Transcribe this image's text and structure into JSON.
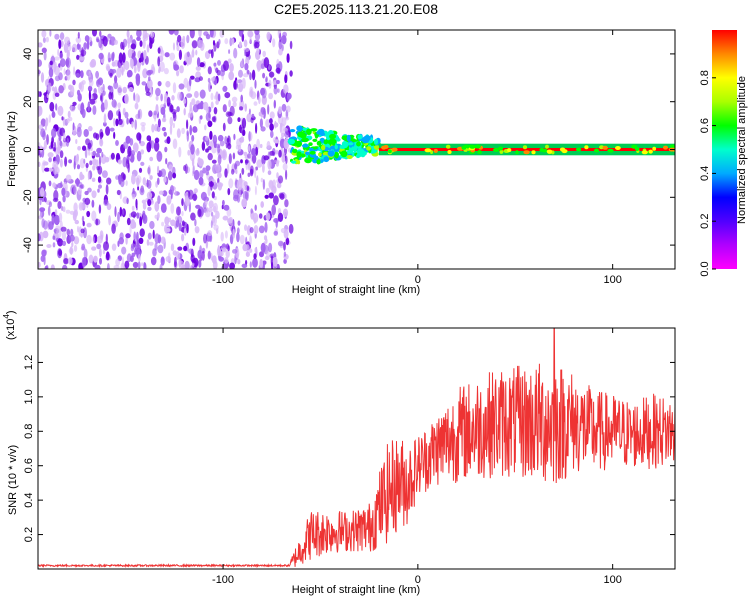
{
  "figure_title": "C2E5.2025.113.21.20.E08",
  "chart_data": [
    {
      "type": "heatmap",
      "title": "C2E5.2025.113.21.20.E08",
      "xlabel": "Height of straight line (km)",
      "ylabel": "Frequency (Hz)",
      "xlim": [
        -195,
        132
      ],
      "ylim": [
        -50,
        50
      ],
      "xticks": [
        -100,
        0,
        100
      ],
      "yticks": [
        -40,
        -20,
        0,
        20,
        40
      ],
      "colorbar": {
        "label": "Normalized spectral amplitude",
        "range": [
          0,
          1
        ],
        "ticks": [
          0.0,
          0.2,
          0.4,
          0.6,
          0.8
        ],
        "tick_labels": [
          "0.0",
          "0.2",
          "0.4",
          "0.6",
          "0.8"
        ],
        "colormap": [
          "#ff00ff",
          "#8000ff",
          "#0000ff",
          "#00aaff",
          "#00ffcc",
          "#00ff00",
          "#aaff00",
          "#ffff00",
          "#ff8800",
          "#ff0000"
        ]
      },
      "regions": [
        {
          "x_range": [
            -195,
            -65
          ],
          "freq_range": [
            -50,
            50
          ],
          "amplitude": 0.15,
          "description": "broadband noise"
        },
        {
          "x_range": [
            -65,
            -20
          ],
          "freq_range": [
            -6,
            10
          ],
          "amplitude": 0.45
        },
        {
          "x_range": [
            -20,
            132
          ],
          "freq_range": [
            -2,
            2
          ],
          "amplitude": 0.95
        }
      ]
    },
    {
      "type": "line",
      "xlabel": "Height of straight line (km)",
      "ylabel": "SNR (10 * v/v)",
      "y_scale_label": "(x10",
      "y_scale_exponent": "4",
      "xlim": [
        -195,
        132
      ],
      "ylim": [
        0,
        1.4
      ],
      "xticks": [
        -100,
        0,
        100
      ],
      "yticks": [
        0.2,
        0.4,
        0.6,
        0.8,
        1.0,
        1.2
      ],
      "ytick_labels": [
        "0.2",
        "0.4",
        "0.6",
        "0.8",
        "1.0",
        "1.2"
      ],
      "color": "#ee3333",
      "envelope": {
        "x": [
          -195,
          -66,
          -64,
          -55,
          -45,
          -35,
          -25,
          -15,
          -10,
          -5,
          0,
          10,
          20,
          30,
          40,
          50,
          60,
          70,
          80,
          90,
          100,
          110,
          120,
          132
        ],
        "y_mean": [
          0.02,
          0.02,
          0.05,
          0.2,
          0.22,
          0.22,
          0.24,
          0.45,
          0.5,
          0.5,
          0.6,
          0.7,
          0.78,
          0.82,
          0.85,
          0.85,
          0.85,
          0.85,
          0.85,
          0.8,
          0.8,
          0.78,
          0.8,
          0.8
        ],
        "y_amp": [
          0.005,
          0.005,
          0.05,
          0.15,
          0.13,
          0.12,
          0.15,
          0.3,
          0.28,
          0.25,
          0.18,
          0.22,
          0.28,
          0.3,
          0.32,
          0.33,
          0.35,
          0.38,
          0.3,
          0.25,
          0.22,
          0.2,
          0.22,
          0.2
        ]
      },
      "peak": {
        "x": 70,
        "y": 1.4
      }
    }
  ]
}
